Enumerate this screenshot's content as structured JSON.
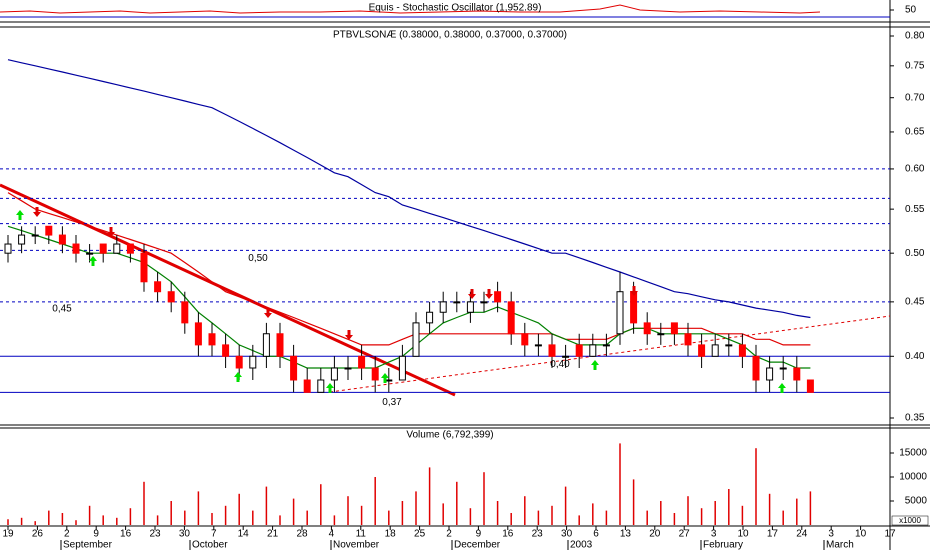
{
  "chart_data": {
    "type": "candlestick",
    "indicator_title": "Equis - Stochastic Oscillator (1,952.89)",
    "indicator_yticks": [
      50
    ],
    "title": "PTBVLSONÆ (0.38000, 0.38000, 0.37000, 0.37000)",
    "log_scale": true,
    "ylim": [
      0.35,
      0.8
    ],
    "yticks": [
      {
        "value": 0.35,
        "label": "0.35"
      },
      {
        "value": 0.4,
        "label": "0.40"
      },
      {
        "value": 0.45,
        "label": "0.45"
      },
      {
        "value": 0.5,
        "label": "0.50"
      },
      {
        "value": 0.55,
        "label": "0.55"
      },
      {
        "value": 0.6,
        "label": "0.60"
      },
      {
        "value": 0.65,
        "label": "0.65"
      },
      {
        "value": 0.7,
        "label": "0.70"
      },
      {
        "value": 0.75,
        "label": "0.75"
      },
      {
        "value": 0.8,
        "label": "0.80"
      }
    ],
    "open": [
      0.5,
      0.51,
      0.52,
      0.53,
      0.52,
      0.51,
      0.5,
      0.51,
      0.5,
      0.51,
      0.5,
      0.47,
      0.46,
      0.45,
      0.43,
      0.42,
      0.41,
      0.4,
      0.39,
      0.4,
      0.42,
      0.4,
      0.38,
      0.37,
      0.38,
      0.39,
      0.4,
      0.39,
      0.38,
      0.38,
      0.4,
      0.43,
      0.44,
      0.45,
      0.44,
      0.45,
      0.46,
      0.45,
      0.42,
      0.41,
      0.41,
      0.4,
      0.41,
      0.4,
      0.41,
      0.42,
      0.46,
      0.43,
      0.42,
      0.43,
      0.42,
      0.41,
      0.4,
      0.41,
      0.41,
      0.4,
      0.38,
      0.39,
      0.39,
      0.38
    ],
    "high": [
      0.52,
      0.53,
      0.53,
      0.53,
      0.53,
      0.52,
      0.51,
      0.51,
      0.52,
      0.51,
      0.51,
      0.48,
      0.47,
      0.46,
      0.44,
      0.43,
      0.42,
      0.41,
      0.41,
      0.43,
      0.43,
      0.41,
      0.39,
      0.39,
      0.4,
      0.4,
      0.41,
      0.4,
      0.39,
      0.41,
      0.44,
      0.45,
      0.46,
      0.46,
      0.46,
      0.46,
      0.47,
      0.46,
      0.43,
      0.42,
      0.42,
      0.41,
      0.42,
      0.42,
      0.42,
      0.48,
      0.47,
      0.44,
      0.43,
      0.43,
      0.43,
      0.42,
      0.42,
      0.42,
      0.42,
      0.41,
      0.4,
      0.4,
      0.4,
      0.38
    ],
    "low": [
      0.49,
      0.5,
      0.51,
      0.51,
      0.5,
      0.49,
      0.49,
      0.49,
      0.5,
      0.49,
      0.46,
      0.45,
      0.44,
      0.42,
      0.4,
      0.4,
      0.39,
      0.38,
      0.38,
      0.39,
      0.39,
      0.37,
      0.37,
      0.37,
      0.37,
      0.38,
      0.38,
      0.37,
      0.37,
      0.38,
      0.4,
      0.42,
      0.43,
      0.44,
      0.43,
      0.44,
      0.44,
      0.41,
      0.4,
      0.4,
      0.39,
      0.39,
      0.39,
      0.4,
      0.4,
      0.41,
      0.42,
      0.41,
      0.41,
      0.41,
      0.4,
      0.39,
      0.4,
      0.4,
      0.39,
      0.37,
      0.37,
      0.38,
      0.37,
      0.37
    ],
    "close": [
      0.51,
      0.52,
      0.52,
      0.52,
      0.51,
      0.5,
      0.5,
      0.5,
      0.51,
      0.5,
      0.47,
      0.46,
      0.45,
      0.43,
      0.41,
      0.41,
      0.4,
      0.39,
      0.4,
      0.42,
      0.4,
      0.38,
      0.37,
      0.38,
      0.39,
      0.39,
      0.39,
      0.38,
      0.38,
      0.4,
      0.43,
      0.44,
      0.45,
      0.45,
      0.45,
      0.45,
      0.45,
      0.42,
      0.41,
      0.41,
      0.4,
      0.4,
      0.4,
      0.41,
      0.41,
      0.46,
      0.43,
      0.42,
      0.42,
      0.42,
      0.41,
      0.4,
      0.41,
      0.41,
      0.4,
      0.38,
      0.39,
      0.39,
      0.38,
      0.37
    ],
    "up_color": "#ffffff",
    "down_color": "#ff0000",
    "series": [
      {
        "color": "#0000a0",
        "values": [
          0.76,
          0.755,
          0.75,
          0.745,
          0.74,
          0.735,
          0.73,
          0.725,
          0.72,
          0.715,
          0.71,
          0.705,
          0.7,
          0.695,
          0.69,
          0.685,
          0.675,
          0.665,
          0.655,
          0.645,
          0.635,
          0.625,
          0.615,
          0.605,
          0.595,
          0.59,
          0.58,
          0.57,
          0.565,
          0.555,
          0.55,
          0.545,
          0.54,
          0.535,
          0.53,
          0.525,
          0.52,
          0.515,
          0.51,
          0.505,
          0.5,
          0.5,
          0.495,
          0.49,
          0.485,
          0.48,
          0.475,
          0.47,
          0.465,
          0.46,
          0.458,
          0.455,
          0.452,
          0.45,
          0.447,
          0.444,
          0.442,
          0.44,
          0.437,
          0.435
        ]
      },
      {
        "color": "#e00000",
        "values": [
          0.57,
          0.56,
          0.55,
          0.545,
          0.54,
          0.535,
          0.53,
          0.525,
          0.52,
          0.515,
          0.51,
          0.505,
          0.5,
          0.49,
          0.48,
          0.47,
          0.46,
          0.455,
          0.45,
          0.445,
          0.44,
          0.435,
          0.43,
          0.425,
          0.42,
          0.415,
          0.41,
          0.41,
          0.41,
          0.415,
          0.42,
          0.42,
          0.42,
          0.42,
          0.42,
          0.42,
          0.42,
          0.42,
          0.42,
          0.42,
          0.42,
          0.415,
          0.415,
          0.415,
          0.415,
          0.42,
          0.425,
          0.425,
          0.425,
          0.425,
          0.425,
          0.425,
          0.42,
          0.42,
          0.42,
          0.415,
          0.415,
          0.41,
          0.41,
          0.41
        ]
      },
      {
        "color": "#008000",
        "values": [
          0.53,
          0.525,
          0.52,
          0.515,
          0.51,
          0.505,
          0.5,
          0.5,
          0.5,
          0.495,
          0.49,
          0.48,
          0.47,
          0.455,
          0.44,
          0.43,
          0.42,
          0.41,
          0.405,
          0.4,
          0.4,
          0.395,
          0.39,
          0.39,
          0.39,
          0.39,
          0.39,
          0.39,
          0.395,
          0.4,
          0.41,
          0.42,
          0.43,
          0.435,
          0.44,
          0.44,
          0.445,
          0.44,
          0.435,
          0.43,
          0.42,
          0.415,
          0.41,
          0.41,
          0.41,
          0.42,
          0.425,
          0.425,
          0.42,
          0.42,
          0.42,
          0.42,
          0.42,
          0.415,
          0.41,
          0.4,
          0.395,
          0.395,
          0.39,
          0.39
        ]
      }
    ],
    "dotted_levels": [
      0.6,
      0.563,
      0.533,
      0.503,
      0.45
    ],
    "solid_levels": [
      0.4,
      0.37
    ],
    "level_color": "#0000c0",
    "annotations": [
      {
        "value": 0.5,
        "label": "0,50"
      },
      {
        "value": 0.45,
        "label": "0,45"
      },
      {
        "value": 0.4,
        "label": "0,40"
      },
      {
        "value": 0.37,
        "label": "0,37"
      }
    ],
    "volume_title": "Volume (6,792,399)",
    "volume_unit": "x1000",
    "volume_color": "#e00000",
    "volume_ylim": [
      0,
      20000
    ],
    "volume_yticks": [
      5000,
      10000,
      15000
    ],
    "volume": [
      1200,
      1500,
      800,
      3000,
      2500,
      1000,
      4000,
      2000,
      1500,
      3500,
      9000,
      2000,
      5000,
      3000,
      7000,
      2500,
      4000,
      6500,
      3000,
      8000,
      2000,
      5500,
      3000,
      8500,
      2000,
      6000,
      4000,
      10000,
      3000,
      5000,
      7000,
      12000,
      4500,
      9000,
      3500,
      11000,
      5000,
      2500,
      6000,
      3000,
      4000,
      8000,
      2000,
      4500,
      3000,
      17000,
      9500,
      3000,
      5000,
      2500,
      6000,
      3500,
      5000,
      7500,
      4000,
      16000,
      6500,
      3000,
      5500,
      7000
    ],
    "x_labels": [
      "19",
      "26",
      "2",
      "9",
      "16",
      "23",
      "30",
      "7",
      "14",
      "21",
      "28",
      "4",
      "11",
      "18",
      "25",
      "2",
      "9",
      "16",
      "23",
      "30",
      "6",
      "13",
      "20",
      "27",
      "3",
      "10",
      "17",
      "24",
      "3",
      "10",
      "17"
    ],
    "months": [
      "September",
      "October",
      "November",
      "December",
      "2003",
      "February",
      "March"
    ]
  }
}
